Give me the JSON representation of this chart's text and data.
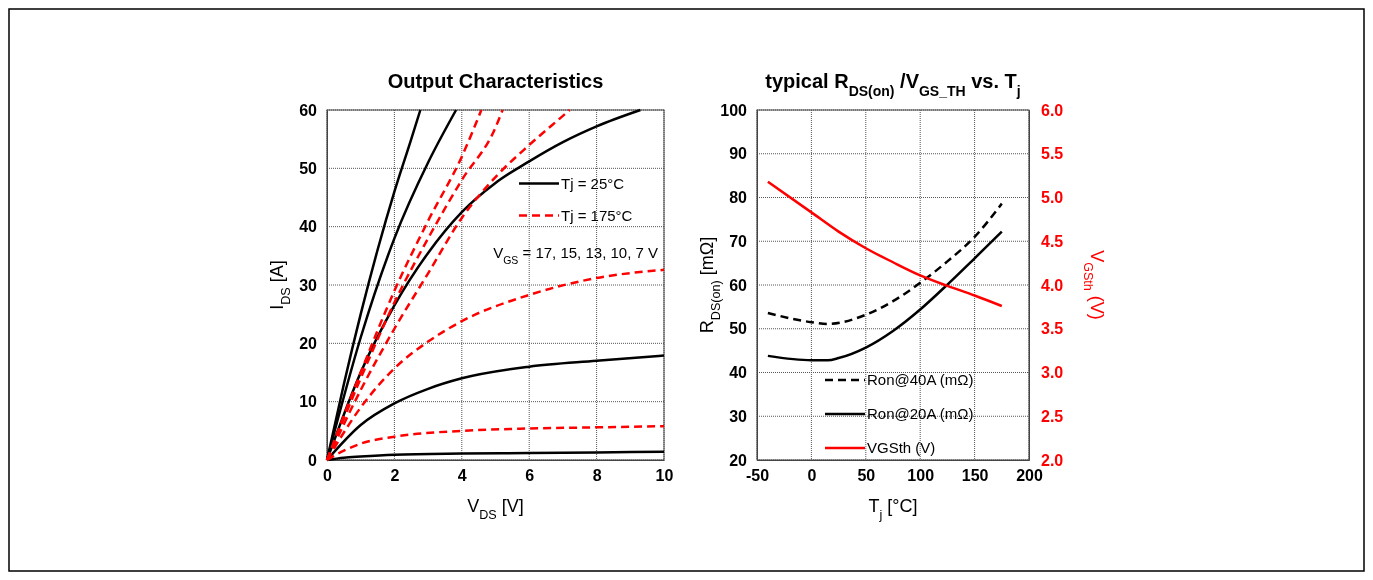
{
  "chart_data": [
    {
      "type": "line",
      "title": "Output Characteristics",
      "xlabel": "V$_{DS}$ [V]",
      "ylabel": "I$_{DS}$ [A]",
      "xlim": [
        0,
        10
      ],
      "ylim": [
        0,
        60
      ],
      "xticks": [
        0,
        2,
        4,
        6,
        8,
        10
      ],
      "yticks": [
        0,
        10,
        20,
        30,
        40,
        50,
        60
      ],
      "grid": true,
      "legend": "right",
      "annotations": [
        "V$_{GS}$ = 17, 15, 13, 10, 7 V"
      ],
      "series": [
        {
          "name": "Tj = 25°C",
          "color": "#000000",
          "line_style": "solid",
          "x": [
            0,
            0.5,
            1,
            1.5,
            2,
            2.5,
            2.77
          ],
          "values": [
            0,
            13,
            25,
            36,
            46,
            55,
            60
          ]
        },
        {
          "color": "#000000",
          "line_style": "solid",
          "x": [
            0,
            1,
            2,
            3,
            3.83
          ],
          "values": [
            0,
            21,
            38,
            51,
            60
          ]
        },
        {
          "color": "#000000",
          "line_style": "solid",
          "x": [
            0,
            1,
            2,
            3,
            4,
            5,
            6,
            7,
            8,
            9.3
          ],
          "values": [
            0,
            15,
            26.5,
            35.5,
            42.5,
            47.5,
            51.2,
            54.5,
            57.2,
            60
          ]
        },
        {
          "color": "#000000",
          "line_style": "solid",
          "x": [
            0,
            1,
            2,
            3,
            4,
            6,
            8,
            10
          ],
          "values": [
            0,
            6,
            9.7,
            12.2,
            14,
            16,
            17,
            17.9
          ]
        },
        {
          "color": "#000000",
          "line_style": "solid",
          "x": [
            0,
            0.5,
            1,
            2,
            4,
            6,
            8,
            10
          ],
          "values": [
            0,
            0.4,
            0.6,
            0.9,
            1.1,
            1.2,
            1.3,
            1.4
          ]
        },
        {
          "name": "Tj = 175°C",
          "color": "#ff0000",
          "line_style": "dashed",
          "x": [
            0,
            1,
            2,
            3,
            4,
            4.58
          ],
          "values": [
            0,
            15,
            29,
            41,
            52,
            60
          ]
        },
        {
          "color": "#ff0000",
          "line_style": "dashed",
          "x": [
            0,
            1,
            2,
            3,
            4,
            5,
            5.21
          ],
          "values": [
            0,
            14,
            27,
            38,
            48,
            57,
            60
          ]
        },
        {
          "color": "#ff0000",
          "line_style": "dashed",
          "x": [
            0,
            1,
            2,
            3,
            4,
            5,
            6,
            7,
            7.2
          ],
          "values": [
            0,
            12,
            22.5,
            32,
            41.5,
            48.5,
            54,
            59,
            60
          ]
        },
        {
          "color": "#ff0000",
          "line_style": "dashed",
          "x": [
            0,
            1,
            2,
            3,
            4,
            6,
            8,
            10
          ],
          "values": [
            0,
            9,
            15.7,
            20.3,
            23.8,
            28.3,
            31.2,
            32.6
          ]
        },
        {
          "color": "#ff0000",
          "line_style": "dashed",
          "x": [
            0,
            0.5,
            1,
            2,
            4,
            6,
            8,
            10
          ],
          "values": [
            0,
            1.6,
            2.8,
            4,
            5,
            5.4,
            5.6,
            5.8
          ]
        }
      ]
    },
    {
      "type": "line",
      "title": "typical R$_{DS(on)}$ /V$_{GS_TH}$ vs. T$_{j}$",
      "xlabel": "T$_{j}$ [°C]",
      "ylabel": "R$_{DS(on)}$ [mΩ]",
      "y2label": "V$_{GSth}$ (V)",
      "xlim": [
        -50,
        200
      ],
      "ylim": [
        20,
        100
      ],
      "y2lim": [
        2,
        6
      ],
      "xticks": [
        -50,
        0,
        50,
        100,
        150,
        200
      ],
      "yticks": [
        20,
        30,
        40,
        50,
        60,
        70,
        80,
        90,
        100
      ],
      "y2ticks": [
        {
          "value": 2,
          "label": "2.0"
        },
        {
          "value": 2.5,
          "label": "2.5"
        },
        {
          "value": 3,
          "label": "3.0"
        },
        {
          "value": 3.5,
          "label": "3.5"
        },
        {
          "value": 4,
          "label": "4.0"
        },
        {
          "value": 4.5,
          "label": "4.5"
        },
        {
          "value": 5,
          "label": "5.0"
        },
        {
          "value": 5.5,
          "label": "5.5"
        },
        {
          "value": 6,
          "label": "6.0"
        }
      ],
      "grid": true,
      "legend": "bottom right",
      "series": [
        {
          "name": "Ron@40A (mΩ)",
          "color": "#000000",
          "line_style": "dashed",
          "x": [
            -40,
            0,
            15,
            50,
            75,
            100,
            125,
            150,
            175
          ],
          "values": [
            53.6,
            51.5,
            51.1,
            53.2,
            56.3,
            60.5,
            65.4,
            71,
            78.6
          ]
        },
        {
          "name": "Ron@20A (mΩ)",
          "color": "#000000",
          "line_style": "solid",
          "x": [
            -40,
            0,
            15,
            25,
            50,
            75,
            100,
            125,
            150,
            175
          ],
          "values": [
            43.8,
            42.8,
            42.8,
            43.3,
            45.7,
            49.5,
            54.4,
            60.1,
            66.1,
            72.2
          ]
        },
        {
          "name": "VGSth (V)",
          "color": "#ff0000",
          "line_style": "solid",
          "axis": "y2",
          "x": [
            -40,
            0,
            25,
            50,
            75,
            100,
            125,
            150,
            175
          ],
          "values": [
            5.18,
            4.83,
            4.61,
            4.42,
            4.26,
            4.11,
            3.99,
            3.88,
            3.76
          ]
        }
      ]
    }
  ]
}
